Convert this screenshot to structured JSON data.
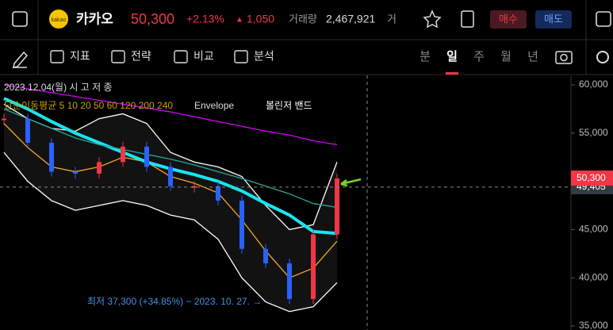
{
  "header": {
    "logo": "kakao",
    "name": "카카오",
    "price": "50,300",
    "change_pct": "+2.13%",
    "change_arrow": "▲",
    "change": "1,050",
    "volume_label": "거래량",
    "volume": "2,467,921",
    "cut_label": "거",
    "buy": "매수",
    "sell": "매도"
  },
  "toolbar": {
    "tools": [
      "지표",
      "전략",
      "비교",
      "분석"
    ],
    "periods": [
      "분",
      "일",
      "주",
      "월",
      "년"
    ]
  },
  "chart_data": {
    "type": "candlestick",
    "info": "2023.12.04(월) 시 고 저 종",
    "legend": [
      "단순이동평균 5 10 20 50 60 120 200 240",
      "Envelope",
      "볼린저 밴드"
    ],
    "annotation": "최저 37,300 (+34.85%) − 2023. 10. 27. →",
    "last_price": 50300,
    "last_price_label": "50,300",
    "crosshair_price": 49405,
    "crosshair_label": "49,405",
    "ylim": [
      35000,
      60500
    ],
    "yticks": [
      {
        "value": 35000,
        "label": "35,000"
      },
      {
        "value": 40000,
        "label": "40,000"
      },
      {
        "value": 45000,
        "label": "45,000"
      },
      {
        "value": 50000,
        "label": "50,000"
      },
      {
        "value": 55000,
        "label": "55,000"
      },
      {
        "value": 60000,
        "label": "60,000"
      }
    ],
    "close": [
      56500,
      54000,
      51000,
      50800,
      52000,
      53600,
      51500,
      49500,
      49500,
      48000,
      43000,
      41500,
      37800,
      44500,
      50300
    ],
    "up_color": "#f23645",
    "down_color": "#2962ff",
    "series": [
      {
        "color": "#ffffff",
        "values": [
          58000,
          56500,
          55500,
          55200,
          56500,
          57000,
          56000,
          53000,
          52000,
          51500,
          50500,
          47500,
          45000,
          45500,
          52000
        ]
      },
      {
        "color": "#ffffff",
        "values": [
          53000,
          50000,
          48000,
          47000,
          47500,
          48000,
          47500,
          46500,
          46000,
          44000,
          40000,
          37500,
          36500,
          37000,
          39500
        ]
      },
      {
        "color": "#f5a623",
        "values": [
          56000,
          53500,
          51500,
          51000,
          51500,
          52500,
          52000,
          50500,
          49800,
          48800,
          46000,
          42800,
          40000,
          41000,
          43800
        ]
      },
      {
        "color": "#18e5f0",
        "values": [
          58600,
          57500,
          56200,
          55000,
          54000,
          53000,
          52000,
          51300,
          50700,
          50000,
          49000,
          47700,
          46500,
          44800,
          44600
        ]
      },
      {
        "color": "#26a69a",
        "values": [
          57500,
          56500,
          55500,
          54500,
          53800,
          53300,
          52800,
          52300,
          51700,
          51000,
          50300,
          49500,
          48700,
          47700,
          47300
        ]
      },
      {
        "color": "#d500f9",
        "values": [
          60000,
          59600,
          59200,
          58800,
          58400,
          58000,
          57600,
          57200,
          56700,
          56200,
          55700,
          55200,
          54800,
          54200,
          53800
        ]
      }
    ]
  }
}
